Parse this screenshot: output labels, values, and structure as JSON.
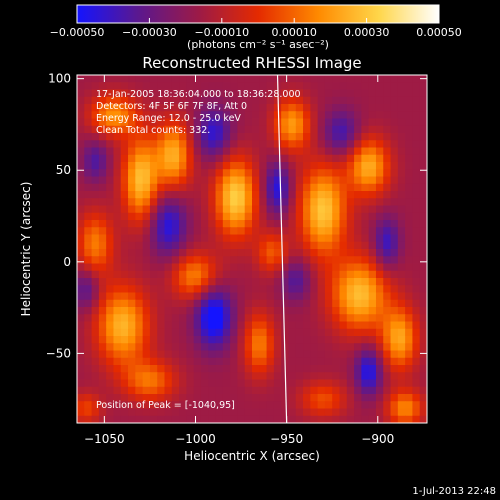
{
  "chart_data": {
    "type": "heatmap",
    "title": "Reconstructed RHESSI Image",
    "xlabel": "Heliocentric X (arcsec)",
    "ylabel": "Heliocentric Y (arcsec)",
    "xlim": [
      -1065,
      -873
    ],
    "ylim": [
      -88,
      102
    ],
    "xticks": [
      -1050,
      -1000,
      -950,
      -900
    ],
    "yticks": [
      -50,
      0,
      50,
      100
    ],
    "xtick_labels": [
      "−1050",
      "−1000",
      "−950",
      "−900"
    ],
    "ytick_labels": [
      "−50",
      "0",
      "50",
      "100"
    ],
    "colorbar": {
      "min": -0.0005,
      "max": 0.0005,
      "ticks": [
        -0.0005,
        -0.0003,
        -0.0001,
        0.0001,
        0.0003,
        0.0005
      ],
      "tick_labels": [
        "−0.00050",
        "−0.00030",
        "−0.00010",
        "0.00010",
        "0.00030",
        "0.00050"
      ],
      "label": "(photons cm⁻² s⁻¹ asec⁻²)",
      "colors": [
        "#1414ff",
        "#5a1890",
        "#9b1a48",
        "#e42a00",
        "#ff8a00",
        "#ffd64a",
        "#ffffff"
      ]
    },
    "annotations": {
      "time": "17-Jan-2005 18:36:04.000 to 18:36:28.000",
      "detectors": "Detectors: 4F 5F 6F 7F 8F, Att 0",
      "energy": "Energy Range: 12.0 - 25.0 keV",
      "method": "Clean    Total counts: 332.",
      "peak": "Position of Peak = [-1040,95]"
    },
    "peak_position": [
      -1040,
      95
    ],
    "limb_line": {
      "x_top": -955,
      "y_top": 102,
      "x_bottom": -950,
      "y_bottom": -88
    },
    "blobs": [
      {
        "x": -1030,
        "y": 45,
        "sx": 7,
        "sy": 16,
        "v": 0.00044
      },
      {
        "x": -1012,
        "y": 58,
        "sx": 7,
        "sy": 13,
        "v": 0.0004
      },
      {
        "x": -1045,
        "y": 80,
        "sx": 9,
        "sy": 8,
        "v": 0.00034
      },
      {
        "x": -978,
        "y": 35,
        "sx": 8,
        "sy": 15,
        "v": 0.00048
      },
      {
        "x": -930,
        "y": 28,
        "sx": 9,
        "sy": 17,
        "v": 0.00046
      },
      {
        "x": -905,
        "y": 52,
        "sx": 8,
        "sy": 11,
        "v": 0.0004
      },
      {
        "x": -947,
        "y": 75,
        "sx": 7,
        "sy": 10,
        "v": 0.00036
      },
      {
        "x": -910,
        "y": -18,
        "sx": 11,
        "sy": 14,
        "v": 0.00044
      },
      {
        "x": -888,
        "y": -42,
        "sx": 7,
        "sy": 12,
        "v": 0.00038
      },
      {
        "x": -1040,
        "y": -35,
        "sx": 10,
        "sy": 15,
        "v": 0.00042
      },
      {
        "x": -1000,
        "y": -8,
        "sx": 9,
        "sy": 9,
        "v": 0.00032
      },
      {
        "x": -1055,
        "y": 10,
        "sx": 7,
        "sy": 12,
        "v": 0.0003
      },
      {
        "x": -965,
        "y": -45,
        "sx": 6,
        "sy": 12,
        "v": 0.0003
      },
      {
        "x": -1025,
        "y": -65,
        "sx": 10,
        "sy": 8,
        "v": 0.00028
      },
      {
        "x": -885,
        "y": -80,
        "sx": 7,
        "sy": 7,
        "v": 0.00032
      },
      {
        "x": -958,
        "y": 5,
        "sx": 6,
        "sy": 8,
        "v": 0.00024
      },
      {
        "x": -930,
        "y": -75,
        "sx": 9,
        "sy": 7,
        "v": 0.00022
      },
      {
        "x": -1060,
        "y": -80,
        "sx": 6,
        "sy": 6,
        "v": 0.0002
      },
      {
        "x": -1055,
        "y": 55,
        "sx": 5,
        "sy": 8,
        "v": -0.0002
      },
      {
        "x": -990,
        "y": 70,
        "sx": 7,
        "sy": 10,
        "v": -0.00028
      },
      {
        "x": -990,
        "y": -30,
        "sx": 7,
        "sy": 12,
        "v": -0.0004
      },
      {
        "x": -1015,
        "y": 20,
        "sx": 7,
        "sy": 12,
        "v": -0.0003
      },
      {
        "x": -955,
        "y": 40,
        "sx": 5,
        "sy": 10,
        "v": -0.0003
      },
      {
        "x": -920,
        "y": 70,
        "sx": 7,
        "sy": 9,
        "v": -0.00024
      },
      {
        "x": -895,
        "y": 10,
        "sx": 5,
        "sy": 10,
        "v": -0.00026
      },
      {
        "x": -905,
        "y": -60,
        "sx": 5,
        "sy": 9,
        "v": -0.00032
      },
      {
        "x": -945,
        "y": -10,
        "sx": 6,
        "sy": 8,
        "v": -0.0002
      },
      {
        "x": -1060,
        "y": -15,
        "sx": 5,
        "sy": 8,
        "v": -0.0002
      }
    ]
  },
  "timestamp": "1-Jul-2013 22:48"
}
